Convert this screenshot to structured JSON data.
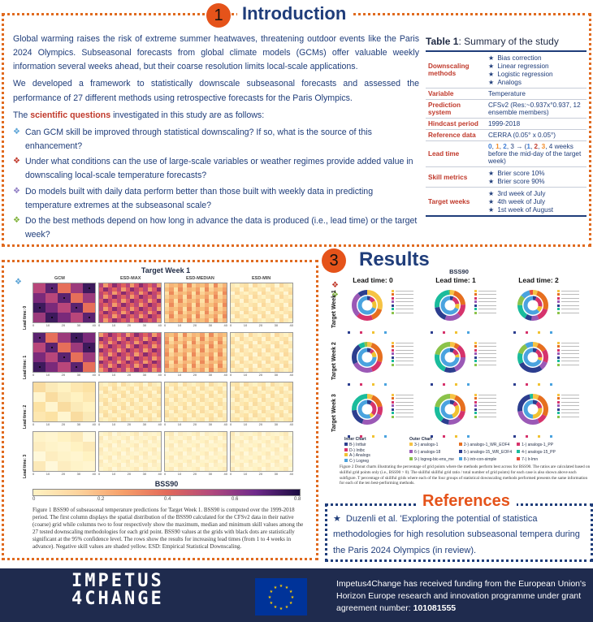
{
  "intro": {
    "number": "1",
    "title": "Introduction",
    "p1": "Global warming raises the risk of extreme summer heatwaves, threatening outdoor events like the Paris 2024 Olympics. Subseasonal forecasts from global climate models (GCMs) offer valuable weekly information several weeks ahead, but their coarse resolution limits local-scale applications.",
    "p2": "We developed a framework to statistically downscale subseasonal forecasts and assessed the performance of 27 different methods using retrospective forecasts for the Paris Olympics.",
    "p3_prefix": "The",
    "p3_highlight": "scientific questions",
    "p3_suffix": "investigated in this study are as follows:",
    "questions": [
      "Can GCM skill be improved through statistical downscaling? If so, what is the source of this enhancement?",
      "Under what conditions can the use of large-scale variables or weather regimes provide added value in downscaling local-scale temperature forecasts?",
      "Do models built with daily data perform better than those built with weekly data in predicting temperature extremes at the subseasonal scale?",
      "Do the best methods depend on how long in advance the data is produced (i.e., lead time) or the target week?"
    ],
    "question_colors": [
      "#5aa3d6",
      "#c0392b",
      "#8e7cc3",
      "#7fb23a"
    ]
  },
  "table": {
    "title_bold": "Table 1",
    "title_rest": ": Summary of the study",
    "downscaling_key": "Downscaling methods",
    "downscaling_items": [
      "Bias correction",
      "Linear regression",
      "Logistic regression",
      "Analogs"
    ],
    "variable_key": "Variable",
    "variable_val": "Temperature",
    "prediction_key": "Prediction system",
    "prediction_val": "CFSv2 (Res:~0.937x°0.937, 12 ensemble members)",
    "hindcast_key": "Hindcast period",
    "hindcast_val": "1999-2018",
    "reference_key": "Reference data",
    "reference_val": "CERRA (0.05° x 0.05°)",
    "lead_key": "Lead time",
    "lead_val_tail": "weeks before the mid-day of the target week)",
    "skill_key": "Skill metrics",
    "skill_items": [
      "Brier score 10%",
      "Brier score 90%"
    ],
    "target_key": "Target weeks",
    "target_items": [
      "3rd week of July",
      "4th week of July",
      "1st week of August"
    ]
  },
  "results": {
    "number": "3",
    "title": "Results",
    "fig1_title": "Target Week 1",
    "fig1_cols": [
      "GCM",
      "ESD-MAX",
      "ESD-MEDIAN",
      "ESD-MIN"
    ],
    "fig1_rows": [
      "Lead time: 0",
      "Lead time: 1",
      "Lead time: 2",
      "Lead time: 3"
    ],
    "fig1_ticks": [
      "0",
      "10",
      "20",
      "30",
      "40"
    ],
    "colorbar_title": "BSS90",
    "colorbar_ticks": [
      "0",
      "0.2",
      "0.4",
      "0.6",
      "0.8"
    ],
    "fig1_caption": "Figure 1 BSS90 of subseasonal temperature predictions for Target Week 1. BSS90 is computed over the 1999-2018 period. The first column displays the spatial distribution of the BSS90 calculated for the CFSv2 data in their native (coarse) grid while columns two to four respectively show the maximum, median and minimum skill values among the 27 tested downscaling methodologies for each grid point. BSS90 values at the grids with black dots are statistically significant at the 95% confidence level. The rows show the results for increasing lead times (from 1 to 4 weeks in advance). Negative skill values are shaded yellow. ESD: Empirical Statistical Downscaling.",
    "fig2_title": "BSS90",
    "fig2_cols": [
      "Lead time: 0",
      "Lead time: 1",
      "Lead time: 2"
    ],
    "fig2_rows": [
      "Target Week 1",
      "Target Week 2",
      "Target Week 3"
    ],
    "inner_chart_label": "Inner Chart",
    "outer_chart_label": "Outer Chart",
    "legend_inner": [
      "B-) Intfair",
      "D-) Intbc",
      "A-) Analogs",
      "C-) Logreg"
    ],
    "legend_outer": [
      "3-) analogs-1",
      "2-) analogs-1_WR_EOF4",
      "1-) analogs-1_PP",
      "6-) analogs-18",
      "5-) analogs-15_WR_EOF4",
      "4-) analogs-15_PP",
      "9-) logreg-bic-ens_me",
      "8-) intr-con-simple",
      "7-) lr-lmn"
    ],
    "fig2_caption": "Figure 2 Donut charts illustrating the percentage of grid points where the methods perform best across for BSS90. The ratios are calculated based on skillful grid points only (i.e., BSS90 > 0). The skillful skillful grid ratio / total number of grid points) for each case is also shown above each subfigure. T percentage of skillful grids where each of the four groups of statistical downscaling methods performed presents the same information for each of the ten best-performing methods."
  },
  "references": {
    "title": "References",
    "text": "Duzenli et al. 'Exploring the potential of statistica methodologies for high resolution subseasonal tempera during the Paris 2024 Olympics (in review)."
  },
  "footer": {
    "logo_line1": "IMPETUS",
    "logo_line2": "4CHANGE",
    "funding_prefix": "Impetus4Change has received funding from the European Union's Horizon Europe research and innovation programme under grant agreement number:",
    "grant_number": "101081555"
  },
  "colors": {
    "accent": "#e5531a",
    "navy": "#1f3d7a",
    "footer": "#1f2b4e",
    "question_red": "#c0392b"
  }
}
